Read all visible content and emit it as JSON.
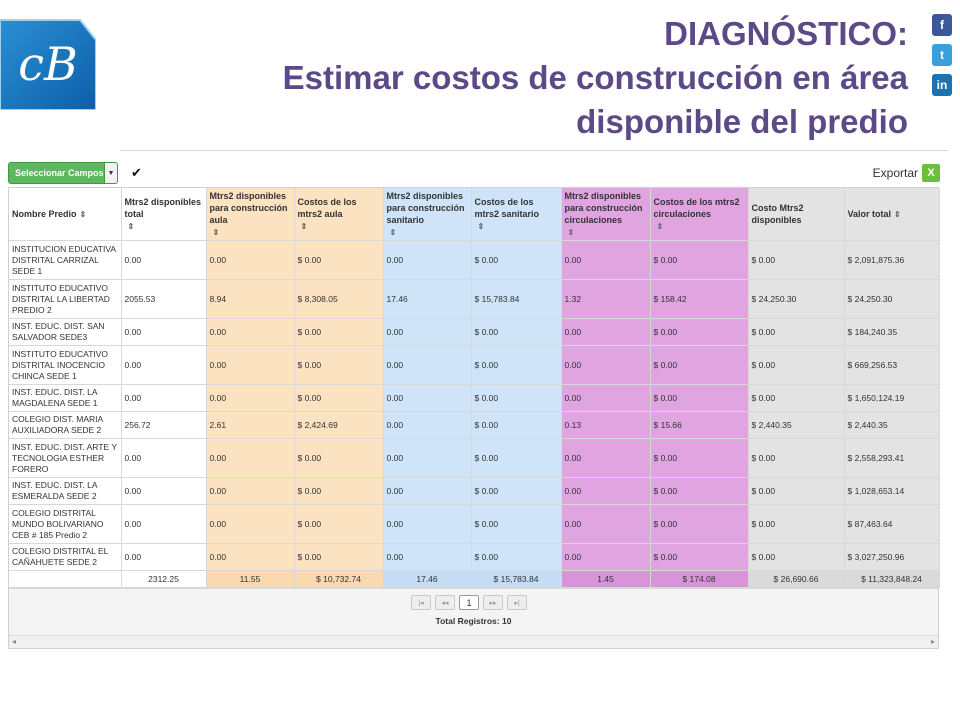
{
  "slide": {
    "title_line1": "DIAGNÓSTICO:",
    "title_line2": "Estimar costos de construcción  en área disponible del predio"
  },
  "social": {
    "facebook": "f",
    "twitter": "t",
    "linkedin": "in"
  },
  "toolbar": {
    "select_fields": "Seleccionar Campos",
    "export": "Exportar"
  },
  "colors": {
    "title": "#5b4a87",
    "orange": "#fbe2c1",
    "blue": "#cfe4f9",
    "purple": "#e0a4e0",
    "grey": "#e3e3e3",
    "button_green": "#5cb85c"
  },
  "columns": [
    "Nombre Predio",
    "Mtrs2 disponibles total",
    "Mtrs2 disponibles para construcción aula",
    "Costos de los mtrs2 aula",
    "Mtrs2 disponibles para construcción sanitario",
    "Costos de los mtrs2 sanitario",
    "Mtrs2 disponibles para construcción circulaciones",
    "Costos de los mtrs2 circulaciones",
    "Costo Mtrs2 disponibles",
    "Valor total"
  ],
  "rows": [
    [
      "INSTITUCION EDUCATIVA DISTRITAL CARRIZAL SEDE 1",
      "0.00",
      "0.00",
      "$ 0.00",
      "0.00",
      "$ 0.00",
      "0.00",
      "$ 0.00",
      "$ 0.00",
      "$ 2,091,875.36"
    ],
    [
      "INSTITUTO EDUCATIVO DISTRITAL LA LIBERTAD PREDIO 2",
      "2055.53",
      "8.94",
      "$ 8,308.05",
      "17.46",
      "$ 15,783.84",
      "1.32",
      "$ 158.42",
      "$ 24,250.30",
      "$ 24,250.30"
    ],
    [
      "INST. EDUC. DIST. SAN SALVADOR SEDE3",
      "0.00",
      "0.00",
      "$ 0.00",
      "0.00",
      "$ 0.00",
      "0.00",
      "$ 0.00",
      "$ 0.00",
      "$ 184,240.35"
    ],
    [
      "INSTITUTO EDUCATIVO DISTRITAL INOCENCIO CHINCA SEDE 1",
      "0.00",
      "0.00",
      "$ 0.00",
      "0.00",
      "$ 0.00",
      "0.00",
      "$ 0.00",
      "$ 0.00",
      "$ 669,256.53"
    ],
    [
      "INST. EDUC. DIST. LA MAGDALENA SEDE 1",
      "0.00",
      "0.00",
      "$ 0.00",
      "0.00",
      "$ 0.00",
      "0.00",
      "$ 0.00",
      "$ 0.00",
      "$ 1,650,124.19"
    ],
    [
      "COLEGIO DIST. MARIA AUXILIADORA SEDE 2",
      "256.72",
      "2.61",
      "$ 2,424.69",
      "0.00",
      "$ 0.00",
      "0.13",
      "$ 15.66",
      "$ 2,440.35",
      "$ 2,440.35"
    ],
    [
      "INST. EDUC. DIST. ARTE Y TECNOLOGIA ESTHER FORERO",
      "0.00",
      "0.00",
      "$ 0.00",
      "0.00",
      "$ 0.00",
      "0.00",
      "$ 0.00",
      "$ 0.00",
      "$ 2,558,293.41"
    ],
    [
      "INST. EDUC. DIST. LA ESMERALDA SEDE 2",
      "0.00",
      "0.00",
      "$ 0.00",
      "0.00",
      "$ 0.00",
      "0.00",
      "$ 0.00",
      "$ 0.00",
      "$ 1,028,653.14"
    ],
    [
      "COLEGIO DISTRITAL MUNDO BOLIVARIANO CEB # 185 Predio 2",
      "0.00",
      "0.00",
      "$ 0.00",
      "0.00",
      "$ 0.00",
      "0.00",
      "$ 0.00",
      "$ 0.00",
      "$ 87,463.64"
    ],
    [
      "COLEGIO DISTRITAL EL CAÑAHUETE SEDE 2",
      "0.00",
      "0.00",
      "$ 0.00",
      "0.00",
      "$ 0.00",
      "0.00",
      "$ 0.00",
      "$ 0.00",
      "$ 3,027,250.96"
    ]
  ],
  "totals": [
    "",
    "2312.25",
    "11.55",
    "$ 10,732.74",
    "17.46",
    "$ 15,783.84",
    "1.45",
    "$ 174.08",
    "$ 26,690.66",
    "$ 11,323,848.24"
  ],
  "pager": {
    "first": "|◂",
    "prev": "◂◂",
    "current_page": "1",
    "next": "▸▸",
    "last": "▸|",
    "total_label": "Total Registros: 10"
  }
}
